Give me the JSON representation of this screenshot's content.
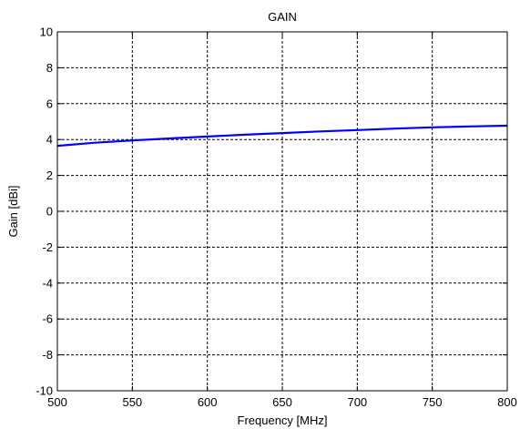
{
  "chart_data": {
    "type": "line",
    "title": "GAIN",
    "xlabel": "Frequency [MHz]",
    "ylabel": "Gain [dBi]",
    "xlim": [
      500,
      800
    ],
    "ylim": [
      -10,
      10
    ],
    "xticks": [
      500,
      550,
      600,
      650,
      700,
      750,
      800
    ],
    "yticks": [
      -10,
      -8,
      -6,
      -4,
      -2,
      0,
      2,
      4,
      6,
      8,
      10
    ],
    "grid": true,
    "legend": "none",
    "series": [
      {
        "color": "#0000ff",
        "x": [
          500,
          525,
          550,
          575,
          600,
          625,
          650,
          675,
          700,
          725,
          750,
          775,
          800
        ],
        "y": [
          3.65,
          3.82,
          3.95,
          4.06,
          4.17,
          4.27,
          4.36,
          4.45,
          4.53,
          4.61,
          4.68,
          4.73,
          4.77
        ]
      }
    ]
  }
}
